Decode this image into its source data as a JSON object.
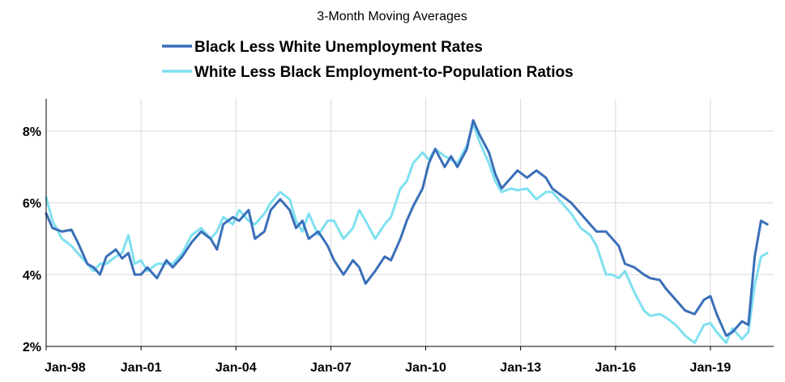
{
  "chart_data": {
    "type": "line",
    "title": "3-Month Moving Averages",
    "xlabel": "",
    "ylabel": "",
    "ylim": [
      2,
      8.9
    ],
    "y_ticks": [
      2,
      4,
      6,
      8
    ],
    "y_tick_labels": [
      "2%",
      "4%",
      "6%",
      "8%"
    ],
    "x_range": [
      1998.0,
      2021.0
    ],
    "x_ticks": [
      {
        "label": "Jan-98",
        "value": 1998.0
      },
      {
        "label": "Jan-01",
        "value": 2001.0
      },
      {
        "label": "Jan-04",
        "value": 2004.0
      },
      {
        "label": "Jan-07",
        "value": 2007.0
      },
      {
        "label": "Jan-10",
        "value": 2010.0
      },
      {
        "label": "Jan-13",
        "value": 2013.0
      },
      {
        "label": "Jan-16",
        "value": 2016.0
      },
      {
        "label": "Jan-19",
        "value": 2019.0
      }
    ],
    "legend_position": "top-center",
    "grid": true,
    "series": [
      {
        "name": "Black Less White Unemployment Rates",
        "color": "#3a6fb8",
        "points": [
          [
            1998.0,
            5.7
          ],
          [
            1998.2,
            5.3
          ],
          [
            1998.5,
            5.2
          ],
          [
            1998.8,
            5.25
          ],
          [
            1999.0,
            4.9
          ],
          [
            1999.3,
            4.3
          ],
          [
            1999.5,
            4.2
          ],
          [
            1999.7,
            4.0
          ],
          [
            1999.9,
            4.5
          ],
          [
            2000.2,
            4.7
          ],
          [
            2000.4,
            4.45
          ],
          [
            2000.6,
            4.6
          ],
          [
            2000.8,
            4.0
          ],
          [
            2001.0,
            4.0
          ],
          [
            2001.2,
            4.2
          ],
          [
            2001.5,
            3.9
          ],
          [
            2001.8,
            4.4
          ],
          [
            2002.0,
            4.2
          ],
          [
            2002.3,
            4.5
          ],
          [
            2002.6,
            4.9
          ],
          [
            2002.9,
            5.2
          ],
          [
            2003.2,
            5.0
          ],
          [
            2003.4,
            4.7
          ],
          [
            2003.6,
            5.4
          ],
          [
            2003.9,
            5.6
          ],
          [
            2004.1,
            5.5
          ],
          [
            2004.4,
            5.8
          ],
          [
            2004.6,
            5.0
          ],
          [
            2004.9,
            5.2
          ],
          [
            2005.1,
            5.8
          ],
          [
            2005.4,
            6.1
          ],
          [
            2005.7,
            5.8
          ],
          [
            2005.9,
            5.3
          ],
          [
            2006.1,
            5.5
          ],
          [
            2006.3,
            5.0
          ],
          [
            2006.6,
            5.2
          ],
          [
            2006.9,
            4.8
          ],
          [
            2007.1,
            4.4
          ],
          [
            2007.4,
            4.0
          ],
          [
            2007.7,
            4.4
          ],
          [
            2007.9,
            4.2
          ],
          [
            2008.1,
            3.75
          ],
          [
            2008.4,
            4.1
          ],
          [
            2008.7,
            4.5
          ],
          [
            2008.9,
            4.4
          ],
          [
            2009.2,
            5.0
          ],
          [
            2009.4,
            5.5
          ],
          [
            2009.6,
            5.9
          ],
          [
            2009.9,
            6.4
          ],
          [
            2010.1,
            7.1
          ],
          [
            2010.3,
            7.5
          ],
          [
            2010.6,
            7.0
          ],
          [
            2010.8,
            7.3
          ],
          [
            2011.0,
            7.0
          ],
          [
            2011.3,
            7.5
          ],
          [
            2011.5,
            8.3
          ],
          [
            2011.7,
            7.9
          ],
          [
            2012.0,
            7.4
          ],
          [
            2012.2,
            6.8
          ],
          [
            2012.4,
            6.4
          ],
          [
            2012.7,
            6.7
          ],
          [
            2012.9,
            6.9
          ],
          [
            2013.2,
            6.7
          ],
          [
            2013.5,
            6.9
          ],
          [
            2013.8,
            6.7
          ],
          [
            2014.0,
            6.4
          ],
          [
            2014.3,
            6.2
          ],
          [
            2014.6,
            6.0
          ],
          [
            2014.9,
            5.7
          ],
          [
            2015.2,
            5.4
          ],
          [
            2015.4,
            5.2
          ],
          [
            2015.7,
            5.2
          ],
          [
            2015.9,
            5.0
          ],
          [
            2016.1,
            4.8
          ],
          [
            2016.3,
            4.3
          ],
          [
            2016.6,
            4.2
          ],
          [
            2016.9,
            4.0
          ],
          [
            2017.1,
            3.9
          ],
          [
            2017.4,
            3.85
          ],
          [
            2017.6,
            3.6
          ],
          [
            2017.9,
            3.3
          ],
          [
            2018.2,
            3.0
          ],
          [
            2018.5,
            2.9
          ],
          [
            2018.8,
            3.3
          ],
          [
            2019.0,
            3.4
          ],
          [
            2019.2,
            2.9
          ],
          [
            2019.5,
            2.3
          ],
          [
            2019.7,
            2.4
          ],
          [
            2020.0,
            2.7
          ],
          [
            2020.2,
            2.6
          ],
          [
            2020.4,
            4.5
          ],
          [
            2020.6,
            5.5
          ],
          [
            2020.8,
            5.4
          ]
        ]
      },
      {
        "name": "White Less Black Employment-to-Population Ratios",
        "color": "#7fe0f0",
        "points": [
          [
            1998.0,
            6.15
          ],
          [
            1998.2,
            5.5
          ],
          [
            1998.5,
            5.0
          ],
          [
            1998.8,
            4.8
          ],
          [
            1999.0,
            4.6
          ],
          [
            1999.3,
            4.3
          ],
          [
            1999.5,
            4.1
          ],
          [
            1999.7,
            4.3
          ],
          [
            1999.9,
            4.3
          ],
          [
            2000.2,
            4.5
          ],
          [
            2000.4,
            4.6
          ],
          [
            2000.6,
            5.1
          ],
          [
            2000.8,
            4.3
          ],
          [
            2001.0,
            4.4
          ],
          [
            2001.2,
            4.1
          ],
          [
            2001.5,
            4.3
          ],
          [
            2001.8,
            4.3
          ],
          [
            2002.0,
            4.3
          ],
          [
            2002.3,
            4.6
          ],
          [
            2002.6,
            5.1
          ],
          [
            2002.9,
            5.3
          ],
          [
            2003.2,
            5.0
          ],
          [
            2003.4,
            5.2
          ],
          [
            2003.6,
            5.6
          ],
          [
            2003.9,
            5.4
          ],
          [
            2004.1,
            5.8
          ],
          [
            2004.4,
            5.5
          ],
          [
            2004.6,
            5.4
          ],
          [
            2004.9,
            5.7
          ],
          [
            2005.1,
            6.0
          ],
          [
            2005.4,
            6.3
          ],
          [
            2005.7,
            6.1
          ],
          [
            2005.9,
            5.5
          ],
          [
            2006.1,
            5.2
          ],
          [
            2006.3,
            5.7
          ],
          [
            2006.6,
            5.1
          ],
          [
            2006.9,
            5.5
          ],
          [
            2007.1,
            5.5
          ],
          [
            2007.4,
            5.0
          ],
          [
            2007.7,
            5.3
          ],
          [
            2007.9,
            5.8
          ],
          [
            2008.1,
            5.5
          ],
          [
            2008.4,
            5.0
          ],
          [
            2008.7,
            5.4
          ],
          [
            2008.9,
            5.6
          ],
          [
            2009.2,
            6.4
          ],
          [
            2009.4,
            6.6
          ],
          [
            2009.6,
            7.1
          ],
          [
            2009.9,
            7.4
          ],
          [
            2010.1,
            7.2
          ],
          [
            2010.3,
            7.5
          ],
          [
            2010.6,
            7.3
          ],
          [
            2010.8,
            7.2
          ],
          [
            2011.0,
            7.1
          ],
          [
            2011.3,
            7.6
          ],
          [
            2011.5,
            8.2
          ],
          [
            2011.7,
            7.7
          ],
          [
            2012.0,
            7.1
          ],
          [
            2012.2,
            6.6
          ],
          [
            2012.4,
            6.3
          ],
          [
            2012.7,
            6.4
          ],
          [
            2012.9,
            6.35
          ],
          [
            2013.2,
            6.4
          ],
          [
            2013.5,
            6.1
          ],
          [
            2013.8,
            6.3
          ],
          [
            2014.0,
            6.3
          ],
          [
            2014.3,
            6.0
          ],
          [
            2014.6,
            5.7
          ],
          [
            2014.9,
            5.3
          ],
          [
            2015.2,
            5.1
          ],
          [
            2015.4,
            4.8
          ],
          [
            2015.7,
            4.0
          ],
          [
            2015.9,
            4.0
          ],
          [
            2016.1,
            3.9
          ],
          [
            2016.3,
            4.1
          ],
          [
            2016.6,
            3.5
          ],
          [
            2016.9,
            3.0
          ],
          [
            2017.1,
            2.85
          ],
          [
            2017.4,
            2.9
          ],
          [
            2017.6,
            2.8
          ],
          [
            2017.9,
            2.6
          ],
          [
            2018.2,
            2.3
          ],
          [
            2018.5,
            2.1
          ],
          [
            2018.8,
            2.6
          ],
          [
            2019.0,
            2.65
          ],
          [
            2019.2,
            2.4
          ],
          [
            2019.5,
            2.1
          ],
          [
            2019.7,
            2.5
          ],
          [
            2020.0,
            2.2
          ],
          [
            2020.2,
            2.4
          ],
          [
            2020.4,
            3.7
          ],
          [
            2020.6,
            4.5
          ],
          [
            2020.8,
            4.6
          ]
        ]
      }
    ]
  }
}
